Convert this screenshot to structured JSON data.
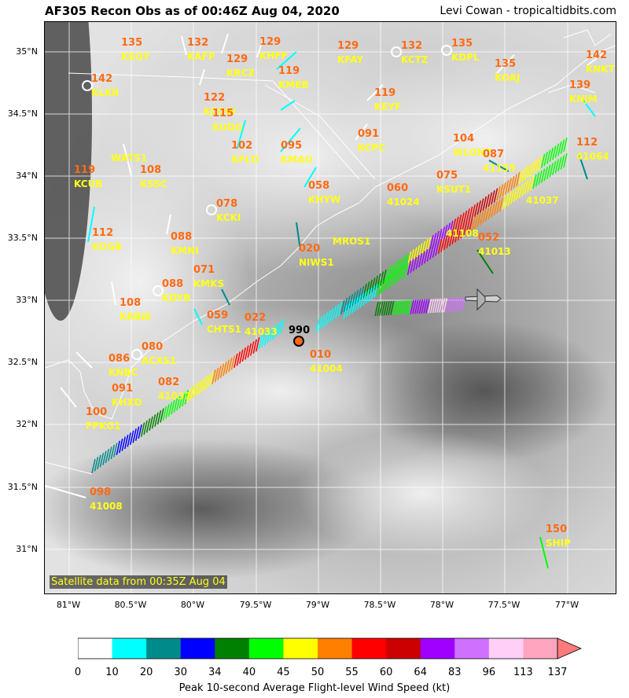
{
  "header": {
    "title": "AF305 Recon Obs as of 00:46Z Aug 04, 2020",
    "credit": "Levi Cowan - tropicaltidbits.com"
  },
  "map": {
    "lon_ticks": [
      "81°W",
      "80.5°W",
      "80°W",
      "79.5°W",
      "79°W",
      "78.5°W",
      "78°W",
      "77.5°W",
      "77°W"
    ],
    "lat_ticks": [
      "35°N",
      "34.5°N",
      "34°N",
      "33.5°N",
      "33°N",
      "32.5°N",
      "32°N",
      "31.5°N",
      "31°N"
    ],
    "satellite_note": "Satellite data from 00:35Z Aug 04",
    "center_pressure": "990"
  },
  "stations": [
    {
      "val": "135",
      "id": "KEQY"
    },
    {
      "val": "132",
      "id": "KAFP"
    },
    {
      "val": "129",
      "id": "KHFF"
    },
    {
      "val": "129",
      "id": "KFAY"
    },
    {
      "val": "132",
      "id": "KCTZ"
    },
    {
      "val": "135",
      "id": "KDPL"
    },
    {
      "val": "142",
      "id": "KNKT"
    },
    {
      "val": "142",
      "id": "KLKR"
    },
    {
      "val": "129",
      "id": "KRCZ"
    },
    {
      "val": "119",
      "id": "KMEB"
    },
    {
      "val": "122",
      "id": "KCQW"
    },
    {
      "val": "135",
      "id": "KOAJ"
    },
    {
      "val": "139",
      "id": "KNJM"
    },
    {
      "val": "119",
      "id": "KEYF"
    },
    {
      "val": "115",
      "id": "KUDG"
    },
    {
      "val": "091",
      "id": "KCPC"
    },
    {
      "val": "",
      "id": "WATS1"
    },
    {
      "val": "102",
      "id": "KFLO"
    },
    {
      "val": "095",
      "id": "KMAO"
    },
    {
      "val": "104",
      "id": "WLON7"
    },
    {
      "val": "087",
      "id": "41159"
    },
    {
      "val": "112",
      "id": "41064"
    },
    {
      "val": "119",
      "id": "KCUB"
    },
    {
      "val": "108",
      "id": "KSSC"
    },
    {
      "val": "",
      "id": "41037"
    },
    {
      "val": "058",
      "id": "KHYW"
    },
    {
      "val": "060",
      "id": "41024"
    },
    {
      "val": "075",
      "id": "KSUT1"
    },
    {
      "val": "078",
      "id": "KCKI"
    },
    {
      "val": "",
      "id": "41108"
    },
    {
      "val": "088",
      "id": "KMNI"
    },
    {
      "val": "",
      "id": "MROS1"
    },
    {
      "val": "112",
      "id": "KOGB"
    },
    {
      "val": "052",
      "id": "41013"
    },
    {
      "val": "020",
      "id": "NIWS1"
    },
    {
      "val": "071",
      "id": "KMKS"
    },
    {
      "val": "088",
      "id": "KDYB"
    },
    {
      "val": "108",
      "id": "KRBW"
    },
    {
      "val": "059",
      "id": "CHTS1"
    },
    {
      "val": "022",
      "id": "41033"
    },
    {
      "val": "010",
      "id": "41004"
    },
    {
      "val": "080",
      "id": "ACXS1"
    },
    {
      "val": "086",
      "id": "KNBC"
    },
    {
      "val": "082",
      "id": "41037"
    },
    {
      "val": "091",
      "id": "KHXD"
    },
    {
      "val": "100",
      "id": "FPKG1"
    },
    {
      "val": "098",
      "id": "41008"
    },
    {
      "val": "150",
      "id": "SHIP"
    }
  ],
  "colorbar": {
    "ticks": [
      "0",
      "10",
      "20",
      "30",
      "34",
      "40",
      "45",
      "50",
      "55",
      "60",
      "64",
      "83",
      "96",
      "113",
      "137"
    ],
    "colors": [
      "#ffffff",
      "#00ffff",
      "#008b8b",
      "#0000ff",
      "#008000",
      "#00ff00",
      "#ffff00",
      "#ff8000",
      "#ff0000",
      "#cc0000",
      "#a000ff",
      "#d070ff",
      "#ffcff8",
      "#ffa5c0",
      "#ff7b7b"
    ],
    "label": "Peak 10-second Average Flight-level Wind Speed (kt)"
  },
  "colors": {
    "station_value": "#ff6a13",
    "station_id": "#ffff1a"
  }
}
